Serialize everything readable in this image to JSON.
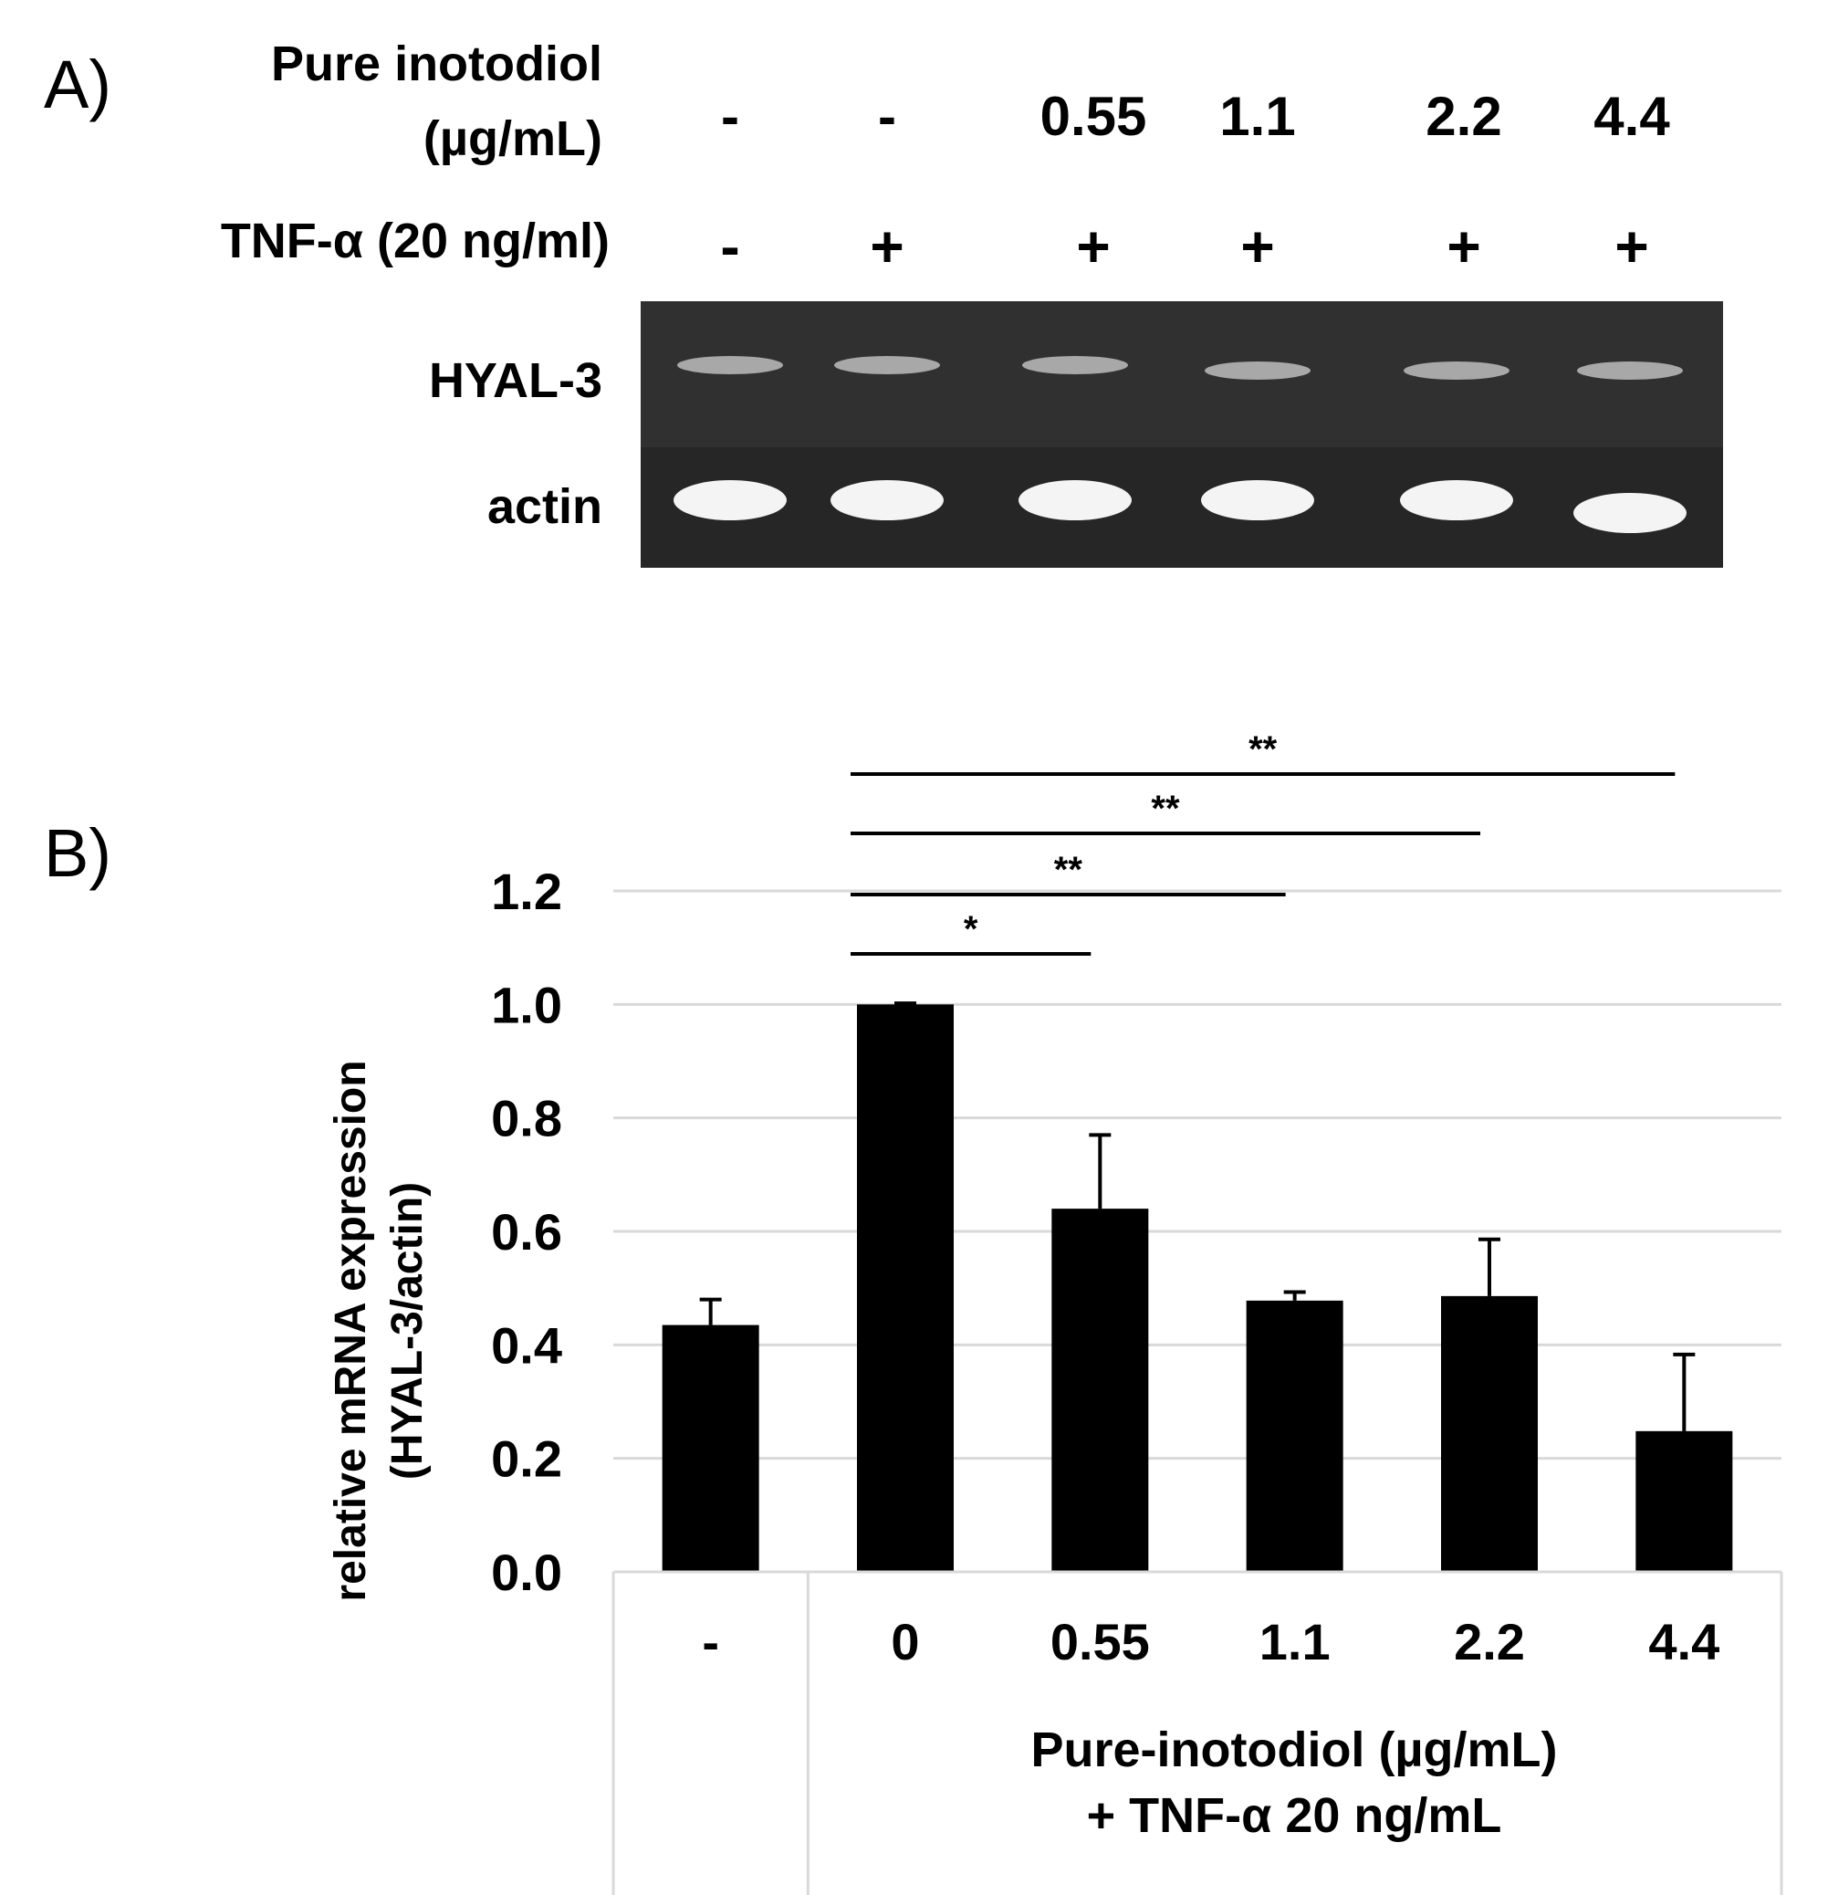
{
  "panel_a": {
    "letter": "A)",
    "row_treatment_label_line1": "Pure inotodiol",
    "row_treatment_label_line2": "(µg/mL)",
    "row_treatment_values": [
      "-",
      "-",
      "0.55",
      "1.1",
      "2.2",
      "4.4"
    ],
    "row_tnf_label": "TNF-α (20 ng/ml)",
    "row_tnf_values": [
      "-",
      "+",
      "+",
      "+",
      "+",
      "+"
    ],
    "gel_label_top": "HYAL-3",
    "gel_label_bottom": "actin"
  },
  "panel_b": {
    "letter": "B)"
  },
  "chart_data": {
    "type": "bar",
    "categories": [
      "-",
      "0",
      "0.55",
      "1.1",
      "2.2",
      "4.4"
    ],
    "values": [
      0.435,
      1.0,
      0.64,
      0.478,
      0.486,
      0.248
    ],
    "error_up": [
      0.045,
      0.002,
      0.13,
      0.015,
      0.1,
      0.135
    ],
    "ylabel_line1": "relative mRNA expression",
    "ylabel_line2": "(HYAL-3/actin)",
    "xlabel_line1": "Pure-inotodiol (µg/mL)",
    "xlabel_line2": "+ TNF-α 20 ng/mL",
    "ylim": [
      0,
      1.2
    ],
    "yticks": [
      "0.0",
      "0.2",
      "0.4",
      "0.6",
      "0.8",
      "1.0",
      "1.2"
    ],
    "grid": true,
    "bar_color": "#000000",
    "significance": [
      {
        "from": 1,
        "to": 2,
        "label": "*"
      },
      {
        "from": 1,
        "to": 3,
        "label": "**"
      },
      {
        "from": 1,
        "to": 4,
        "label": "**"
      },
      {
        "from": 1,
        "to": 5,
        "label": "**"
      }
    ]
  }
}
